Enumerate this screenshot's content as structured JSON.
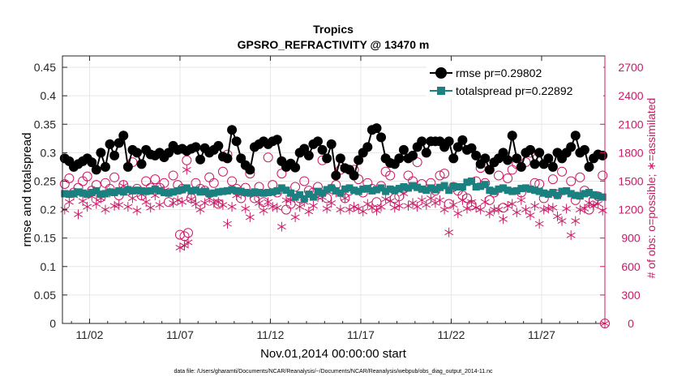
{
  "chart_data": {
    "type": "line",
    "title": "Tropics",
    "subtitle": "GPSRO_REFRACTIVITY @ 13470 m",
    "xlabel": "Nov.01,2014 00:00:00 start",
    "ylabel_left": "rmse and totalspread",
    "ylabel_right": "# of obs: o=possible; ∗=assimilated",
    "footnote": "data file: /Users/gharamti/Documents/NCAR/Reanalysis/~/Documents/NCAR/Reanalysis/webpub/obs_diag_output_2014-11.nc",
    "xlim": [
      0.5,
      30.5
    ],
    "ylim_left": [
      0,
      0.47
    ],
    "ylim_right": [
      0,
      2820
    ],
    "x_ticks": [
      2,
      7,
      12,
      17,
      22,
      27
    ],
    "x_tick_labels": [
      "11/02",
      "11/07",
      "11/12",
      "11/17",
      "11/22",
      "11/27"
    ],
    "y_left_ticks": [
      0,
      0.05,
      0.1,
      0.15,
      0.2,
      0.25,
      0.3,
      0.35,
      0.4,
      0.45
    ],
    "y_left_tick_labels": [
      "0",
      "0.05",
      "0.1",
      "0.15",
      "0.2",
      "0.25",
      "0.3",
      "0.35",
      "0.4",
      "0.45"
    ],
    "y_right_ticks": [
      0,
      300,
      600,
      900,
      1200,
      1500,
      1800,
      2100,
      2400,
      2700
    ],
    "y_right_tick_labels": [
      "0",
      "300",
      "600",
      "900",
      "1200",
      "1500",
      "1800",
      "2100",
      "2400",
      "2700"
    ],
    "grid": true,
    "legend_position": "top-right",
    "colors": {
      "rmse": "#000000",
      "spread": "#1a8080",
      "obs": "#cc1a66",
      "axis": "#262626",
      "grid": "#e6e6e6"
    },
    "x_steps": 120,
    "x_start": 0.625,
    "x_step": 0.25,
    "series": [
      {
        "name": "rmse pr=0.29802",
        "axis": "left",
        "marker": "filled-circle",
        "values": [
          0.29,
          0.285,
          0.275,
          0.28,
          0.285,
          0.29,
          0.283,
          0.27,
          0.3,
          0.275,
          0.315,
          0.295,
          0.317,
          0.33,
          0.275,
          0.305,
          0.3,
          0.28,
          0.305,
          0.297,
          0.295,
          0.3,
          0.292,
          0.3,
          0.312,
          0.305,
          0.307,
          0.303,
          0.307,
          0.31,
          0.288,
          0.308,
          0.3,
          0.305,
          0.312,
          0.293,
          0.29,
          0.34,
          0.32,
          0.29,
          0.278,
          0.27,
          0.31,
          0.315,
          0.32,
          0.315,
          0.32,
          0.323,
          0.285,
          0.275,
          0.281,
          0.274,
          0.3,
          0.307,
          0.295,
          0.315,
          0.32,
          0.305,
          0.29,
          0.315,
          0.26,
          0.29,
          0.273,
          0.27,
          0.26,
          0.287,
          0.3,
          0.31,
          0.34,
          0.343,
          0.327,
          0.29,
          0.282,
          0.28,
          0.29,
          0.305,
          0.29,
          0.295,
          0.31,
          0.32,
          0.3,
          0.32,
          0.32,
          0.32,
          0.31,
          0.32,
          0.29,
          0.31,
          0.322,
          0.305,
          0.308,
          0.295,
          0.28,
          0.29,
          0.27,
          0.283,
          0.29,
          0.3,
          0.287,
          0.33,
          0.29,
          0.275,
          0.3,
          0.305,
          0.28,
          0.3,
          0.28,
          0.29,
          0.275,
          0.3,
          0.29,
          0.3,
          0.31,
          0.33,
          0.3,
          0.305,
          0.275,
          0.29,
          0.297,
          0.295
        ]
      },
      {
        "name": "totalspread pr=0.22892",
        "axis": "left",
        "marker": "filled-square",
        "values": [
          0.228,
          0.227,
          0.228,
          0.231,
          0.229,
          0.227,
          0.23,
          0.233,
          0.227,
          0.228,
          0.231,
          0.23,
          0.233,
          0.231,
          0.235,
          0.233,
          0.234,
          0.233,
          0.232,
          0.233,
          0.236,
          0.233,
          0.23,
          0.229,
          0.231,
          0.233,
          0.235,
          0.238,
          0.233,
          0.234,
          0.231,
          0.232,
          0.228,
          0.229,
          0.231,
          0.232,
          0.233,
          0.235,
          0.233,
          0.232,
          0.23,
          0.229,
          0.231,
          0.23,
          0.229,
          0.23,
          0.231,
          0.233,
          0.238,
          0.234,
          0.229,
          0.222,
          0.226,
          0.219,
          0.227,
          0.222,
          0.232,
          0.229,
          0.235,
          0.238,
          0.233,
          0.229,
          0.236,
          0.238,
          0.234,
          0.232,
          0.236,
          0.237,
          0.233,
          0.235,
          0.238,
          0.232,
          0.236,
          0.234,
          0.237,
          0.24,
          0.238,
          0.242,
          0.239,
          0.236,
          0.234,
          0.238,
          0.235,
          0.239,
          0.242,
          0.234,
          0.241,
          0.24,
          0.24,
          0.248,
          0.25,
          0.24,
          0.241,
          0.244,
          0.234,
          0.232,
          0.236,
          0.238,
          0.234,
          0.232,
          0.233,
          0.237,
          0.238,
          0.236,
          0.234,
          0.232,
          0.229,
          0.227,
          0.23,
          0.225,
          0.232,
          0.233,
          0.228,
          0.225,
          0.224,
          0.228,
          0.23,
          0.226,
          0.224,
          0.222
        ]
      },
      {
        "name": "obs possible",
        "axis": "right",
        "marker": "open-circle",
        "values": [
          1470,
          1530,
          1380,
          1430,
          1500,
          1550,
          1400,
          1460,
          1330,
          1480,
          1420,
          1540,
          1350,
          1460,
          1400,
          1700,
          1420,
          1350,
          1500,
          1430,
          1520,
          1430,
          1480,
          1280,
          1560,
          1460,
          1420,
          1720,
          1320,
          1480,
          1420,
          1400,
          1540,
          1480,
          1260,
          1600,
          1780,
          1500,
          1420,
          1320,
          1430,
          1580,
          1320,
          1440,
          1280,
          1750,
          1460,
          1380,
          1580,
          1200,
          1260,
          1440,
          1320,
          1500,
          1400,
          1380,
          1440,
          1720,
          1320,
          1420,
          1460,
          1620,
          1320,
          1400,
          1620,
          1520,
          1380,
          1480,
          1420,
          1280,
          1450,
          1600,
          1560,
          1320,
          1340,
          1420,
          1560,
          1500,
          1700,
          1470,
          1800,
          1480,
          1400,
          1560,
          1580,
          1260,
          1440,
          1400,
          1350,
          1320,
          1250,
          1500,
          1640,
          1480,
          1300,
          1380,
          1560,
          1220,
          1530,
          1620,
          1680,
          1380,
          1700,
          1800,
          1480,
          1470,
          1320,
          1700,
          1520,
          1360,
          1600,
          1800,
          1500,
          1300,
          1540,
          1400,
          1200,
          1300,
          1340,
          1560
        ]
      },
      {
        "name": "obs assimilated",
        "axis": "right",
        "marker": "asterisk",
        "values": [
          1200,
          1280,
          1350,
          1150,
          1290,
          1230,
          1340,
          1260,
          1320,
          1200,
          1380,
          1240,
          1250,
          1450,
          1230,
          1320,
          1190,
          1360,
          1280,
          1220,
          1350,
          1250,
          1400,
          1380,
          1270,
          1300,
          1280,
          1620,
          1310,
          1260,
          1200,
          1270,
          1320,
          1270,
          1280,
          1250,
          1050,
          1230,
          1350,
          1360,
          1210,
          1120,
          1350,
          1270,
          1190,
          1280,
          1230,
          1220,
          1020,
          1300,
          1300,
          1120,
          1230,
          1280,
          1180,
          1240,
          1330,
          1330,
          1210,
          1270,
          1380,
          1200,
          1320,
          1200,
          1230,
          1210,
          1180,
          1260,
          1220,
          1190,
          1230,
          1310,
          1290,
          1220,
          1240,
          1370,
          1240,
          1270,
          1230,
          1300,
          1250,
          1320,
          1270,
          1300,
          1200,
          960,
          1250,
          1160,
          1300,
          1210,
          1280,
          1220,
          1200,
          1280,
          1160,
          1200,
          1200,
          1100,
          1240,
          1260,
          1170,
          1300,
          1200,
          1140,
          1240,
          1050,
          1200,
          1210,
          1220,
          1130,
          1080,
          1210,
          930,
          1080,
          1200,
          1210,
          1270,
          1240,
          1260,
          1190
        ]
      }
    ],
    "low_points": {
      "axis": "right",
      "possible": [
        {
          "x": 7.0,
          "v": 935
        },
        {
          "x": 7.25,
          "v": 920
        },
        {
          "x": 7.45,
          "v": 955
        }
      ],
      "assimilated": [
        {
          "x": 7.0,
          "v": 800
        },
        {
          "x": 7.25,
          "v": 820
        },
        {
          "x": 7.45,
          "v": 855
        }
      ]
    },
    "axis_corner_marker": {
      "x": 30.5,
      "v": 0,
      "markers": [
        "open-circle",
        "asterisk"
      ]
    }
  }
}
